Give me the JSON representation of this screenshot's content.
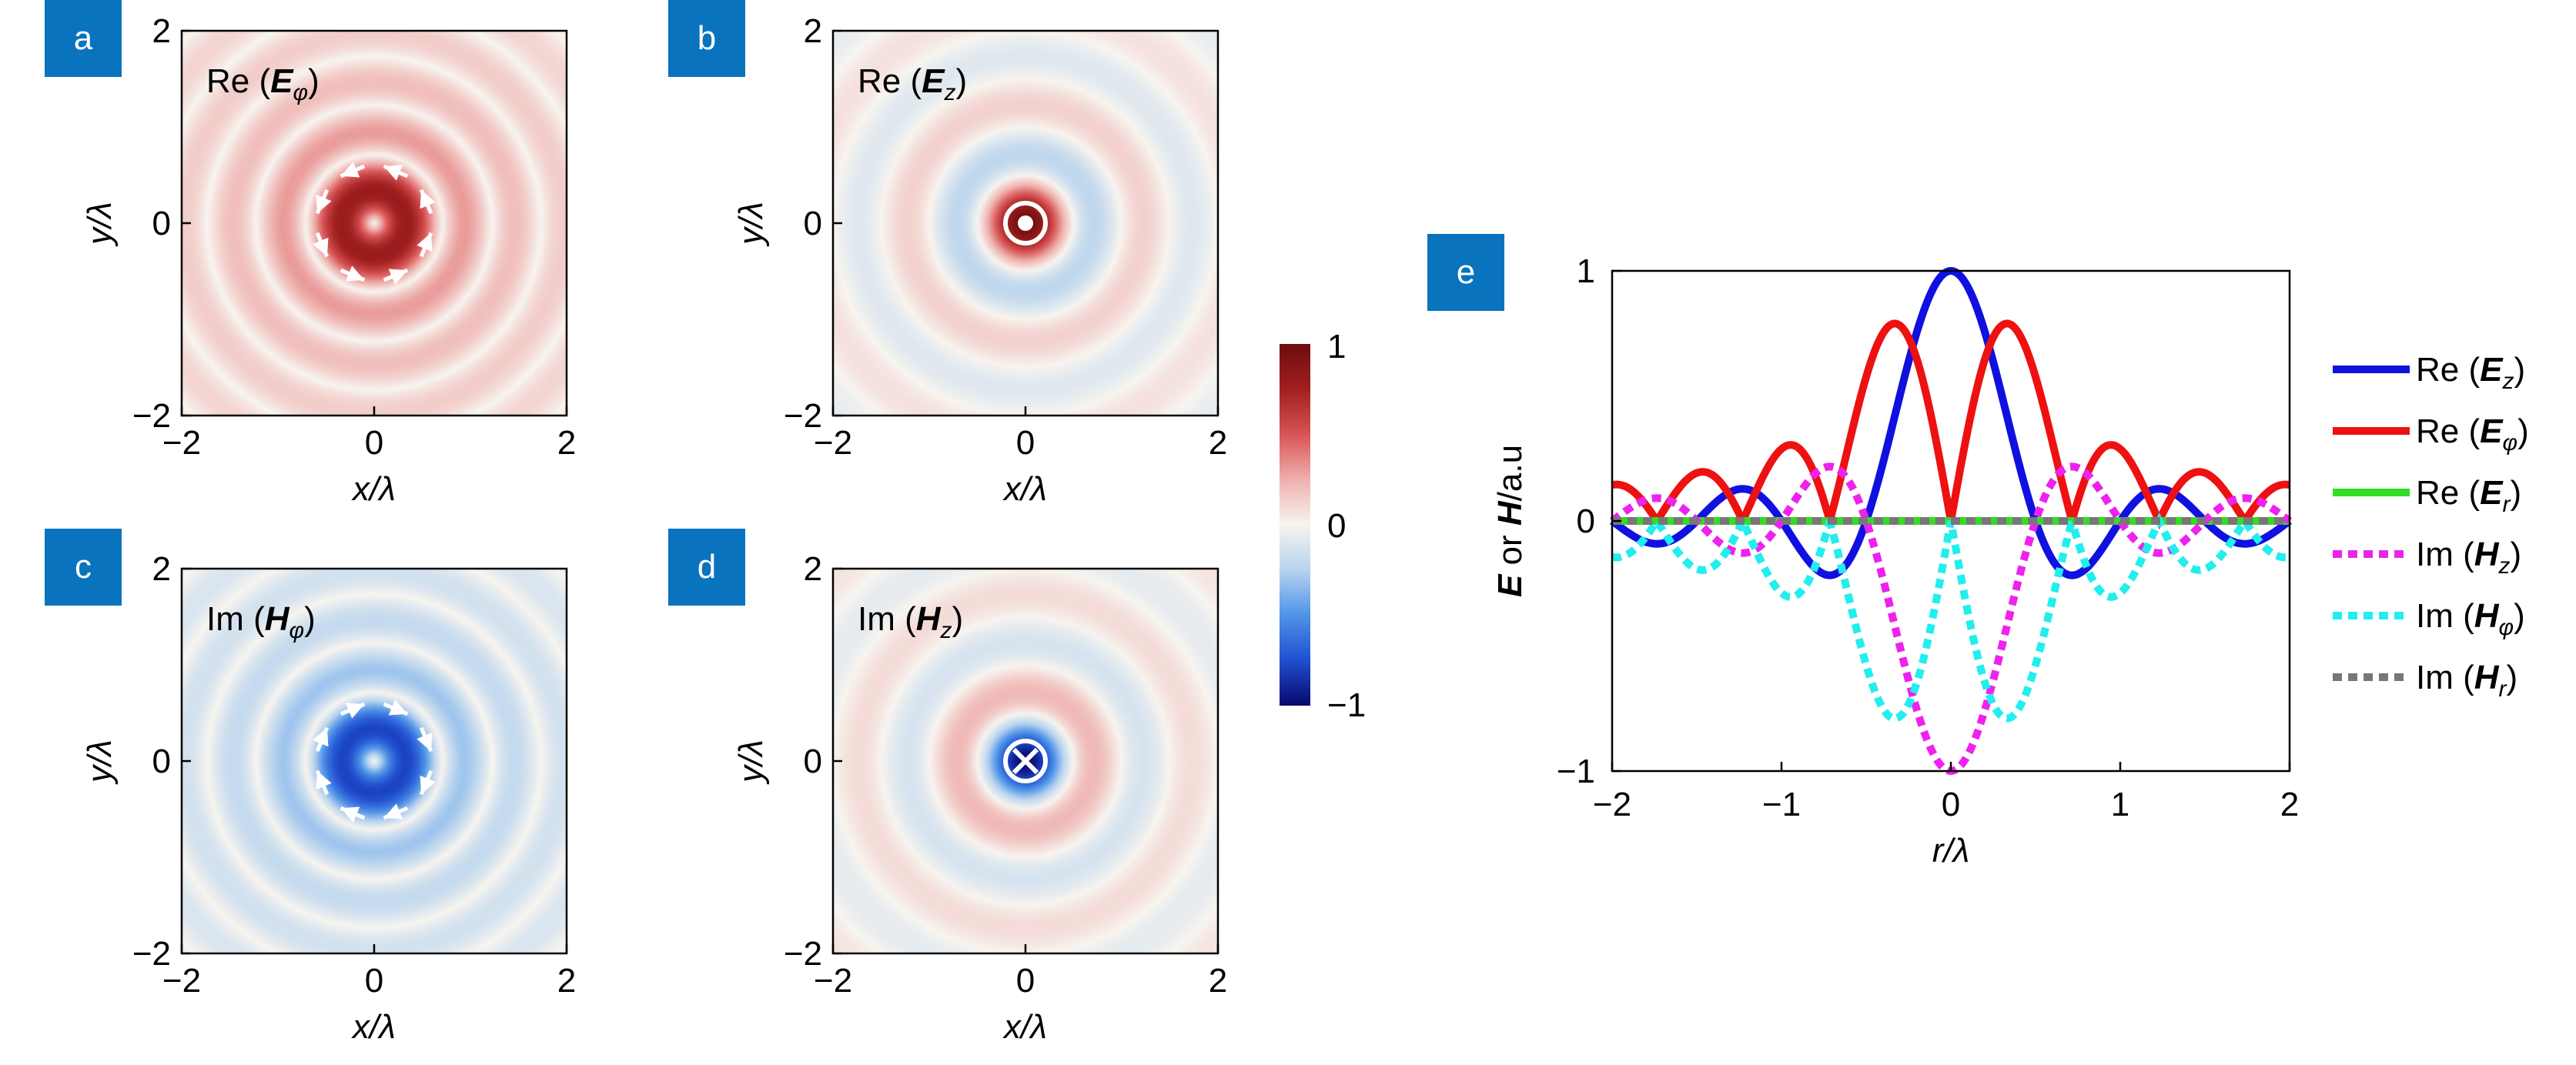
{
  "chart_data": [
    {
      "id": "a",
      "type": "heatmap",
      "panel_label": "a",
      "title_prefix": "Re (",
      "title_symbol": "E",
      "title_sub": "φ",
      "title_suffix": ")",
      "field": "Re_E_phi",
      "x_range": [
        -2,
        2
      ],
      "y_range": [
        -2,
        2
      ],
      "xticks": [
        "−2",
        "0",
        "2"
      ],
      "yticks": [
        "−2",
        "0",
        "2"
      ],
      "xlabel": "x/λ",
      "ylabel": "y/λ",
      "center_marker": "azimuthal-arrows-counterclockwise"
    },
    {
      "id": "b",
      "type": "heatmap",
      "panel_label": "b",
      "title_prefix": "Re (",
      "title_symbol": "E",
      "title_sub": "z",
      "title_suffix": ")",
      "field": "Re_E_z",
      "x_range": [
        -2,
        2
      ],
      "y_range": [
        -2,
        2
      ],
      "xticks": [
        "−2",
        "0",
        "2"
      ],
      "yticks": [
        "−2",
        "0",
        "2"
      ],
      "xlabel": "x/λ",
      "ylabel": "y/λ",
      "center_marker": "out-of-plane-dot"
    },
    {
      "id": "c",
      "type": "heatmap",
      "panel_label": "c",
      "title_prefix": "Im (",
      "title_symbol": "H",
      "title_sub": "φ",
      "title_suffix": ")",
      "field": "Im_H_phi",
      "x_range": [
        -2,
        2
      ],
      "y_range": [
        -2,
        2
      ],
      "xticks": [
        "−2",
        "0",
        "2"
      ],
      "yticks": [
        "−2",
        "0",
        "2"
      ],
      "xlabel": "x/λ",
      "ylabel": "y/λ",
      "center_marker": "azimuthal-arrows-clockwise"
    },
    {
      "id": "d",
      "type": "heatmap",
      "panel_label": "d",
      "title_prefix": "Im (",
      "title_symbol": "H",
      "title_sub": "z",
      "title_suffix": ")",
      "field": "Im_H_z",
      "x_range": [
        -2,
        2
      ],
      "y_range": [
        -2,
        2
      ],
      "xticks": [
        "−2",
        "0",
        "2"
      ],
      "yticks": [
        "−2",
        "0",
        "2"
      ],
      "xlabel": "x/λ",
      "ylabel": "y/λ",
      "center_marker": "into-plane-cross"
    },
    {
      "id": "colorbar",
      "type": "colorbar",
      "range": [
        -1,
        1
      ],
      "ticks": [
        "1",
        "0",
        "−1"
      ],
      "colormap": [
        "#08086e",
        "#1f4fd0",
        "#4f93e8",
        "#b7d3ee",
        "#f7f4ef",
        "#eeb0ae",
        "#d85454",
        "#a11f1f",
        "#6e0d0d"
      ]
    },
    {
      "id": "e",
      "type": "line",
      "panel_label": "e",
      "x_range": [
        -2,
        2
      ],
      "y_range": [
        -1,
        1
      ],
      "xticks": [
        "−2",
        "−1",
        "0",
        "1",
        "2"
      ],
      "yticks": [
        "1",
        "0",
        "−1"
      ],
      "xlabel": "r/λ",
      "ylabel_parts": [
        {
          "text": "E",
          "style": "bi"
        },
        {
          "text": " or ",
          "style": "n"
        },
        {
          "text": "H",
          "style": "bi"
        },
        {
          "text": "/a.u",
          "style": "n"
        }
      ],
      "series": [
        {
          "prefix": "Re (",
          "symbol": "E",
          "sub": "z",
          "suffix": ")",
          "color": "#1010e0",
          "dash": "solid",
          "function": "Re_E_z"
        },
        {
          "prefix": "Re (",
          "symbol": "E",
          "sub": "φ",
          "suffix": ")",
          "color": "#ee1111",
          "dash": "solid",
          "function": "Re_E_phi"
        },
        {
          "prefix": "Re (",
          "symbol": "E",
          "sub": "r",
          "suffix": ")",
          "color": "#33dd22",
          "dash": "solid",
          "function": "zero"
        },
        {
          "prefix": "Im (",
          "symbol": "H",
          "sub": "z",
          "suffix": ")",
          "color": "#ee22ee",
          "dash": "dotted",
          "function": "Im_H_z"
        },
        {
          "prefix": "Im (",
          "symbol": "H",
          "sub": "φ",
          "suffix": ")",
          "color": "#22eeee",
          "dash": "dotted",
          "function": "Im_H_phi"
        },
        {
          "prefix": "Im (",
          "symbol": "H",
          "sub": "r",
          "suffix": ")",
          "color": "#777777",
          "dash": "dotted",
          "function": "zero"
        }
      ],
      "legend_position": "right"
    }
  ]
}
